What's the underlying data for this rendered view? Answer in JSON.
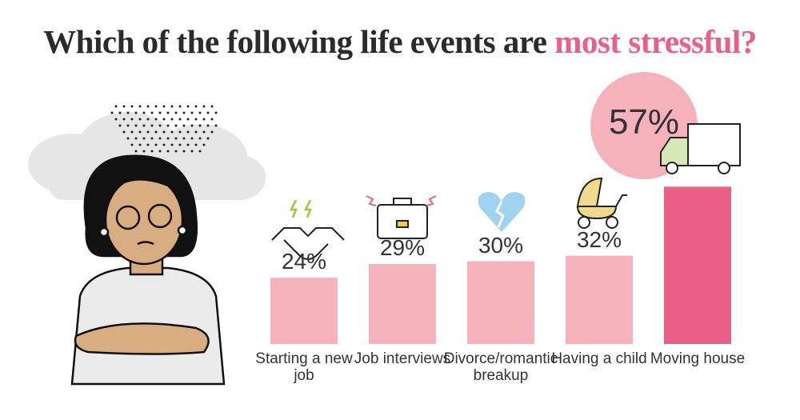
{
  "chart_data": {
    "type": "bar",
    "title": "Which of the following life events are",
    "title_highlight": "most stressful?",
    "categories": [
      "Starting a new job",
      "Job interviews",
      "Divorce/romantic breakup",
      "Having a child",
      "Moving house"
    ],
    "values": [
      24,
      29,
      30,
      32,
      57
    ],
    "value_labels": [
      "24%",
      "29%",
      "30%",
      "32%",
      "57%"
    ],
    "colors": [
      "#f6b3bb",
      "#f6b3bb",
      "#f6b3bb",
      "#f6b3bb",
      "#ea5f86"
    ]
  }
}
